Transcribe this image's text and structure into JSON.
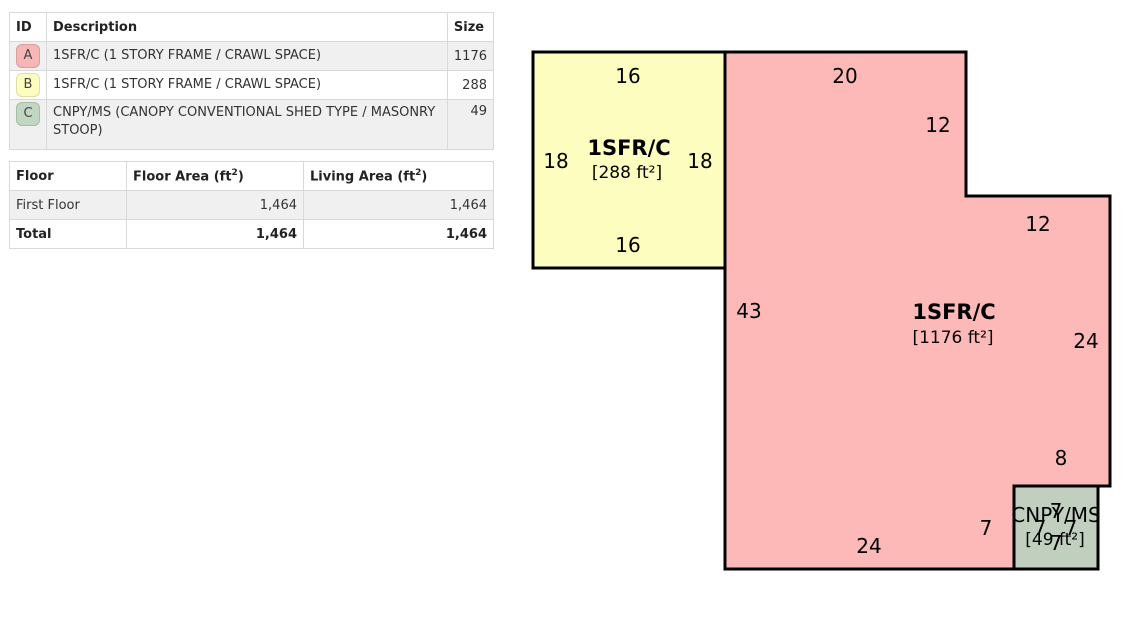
{
  "sections_table": {
    "headers": {
      "id": "ID",
      "description": "Description",
      "size": "Size"
    },
    "rows": [
      {
        "id": "A",
        "description": "1SFR/C (1 STORY FRAME / CRAWL SPACE)",
        "size": "1176",
        "color": "#f8b6b6"
      },
      {
        "id": "B",
        "description": "1SFR/C (1 STORY FRAME / CRAWL SPACE)",
        "size": "288",
        "color": "#fdfdbf"
      },
      {
        "id": "C",
        "description": "CNPY/MS (CANOPY CONVENTIONAL SHED TYPE / MASONRY STOOP)",
        "size": "49",
        "color": "#c1d7c1"
      }
    ]
  },
  "area_table": {
    "headers": {
      "floor": "Floor",
      "floor_area": "Floor Area (ft",
      "living_area": "Living Area (ft",
      "sup": "2",
      "close": ")"
    },
    "rows": [
      {
        "floor": "First Floor",
        "floor_area": "1,464",
        "living_area": "1,464"
      },
      {
        "floor": "Total",
        "floor_area": "1,464",
        "living_area": "1,464"
      }
    ]
  },
  "sketch": {
    "section_b": {
      "label": "1SFR/C",
      "area": "[288 ft²]",
      "color": "#fdfdbf",
      "dims": {
        "top": "16",
        "bottom": "16",
        "left": "18",
        "right": "18"
      }
    },
    "section_a": {
      "label": "1SFR/C",
      "area": "[1176 ft²]",
      "color": "#fdb8b8",
      "dims": {
        "top": "20",
        "notch_side": "12",
        "notch_top": "12",
        "left": "43",
        "right": "24",
        "right_lower": "8",
        "bottom": "24",
        "stoop_left": "7"
      }
    },
    "section_c": {
      "label": "CNPY/MS",
      "area": "[49 ft²]",
      "color": "#c1cfbf",
      "dims": {
        "top": "7",
        "right": "7",
        "bottom": "7",
        "left": "7"
      }
    }
  }
}
